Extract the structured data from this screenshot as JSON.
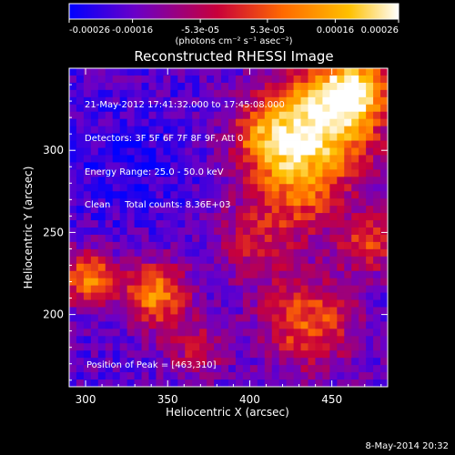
{
  "chart_data": {
    "type": "heatmap",
    "title": "Reconstructed RHESSI Image",
    "xlabel": "Heliocentric X (arcsec)",
    "ylabel": "Heliocentric Y (arcsec)",
    "xlim": [
      290,
      484
    ],
    "ylim": [
      156,
      350
    ],
    "x_ticks": [
      300,
      350,
      400,
      450
    ],
    "x_tick_labels": [
      "300",
      "350",
      "400",
      "450"
    ],
    "y_ticks": [
      200,
      250,
      300
    ],
    "y_tick_labels": [
      "200",
      "250",
      "300"
    ],
    "colorbar": {
      "min": -0.00026,
      "max": 0.00026,
      "tick_values": [
        -0.00026,
        -0.00016,
        -5.3e-05,
        5.3e-05,
        0.00016,
        0.00026
      ],
      "tick_labels": [
        "-0.00026",
        "-0.00016",
        "-5.3e-05",
        "5.3e-05",
        "0.00016",
        "0.00026"
      ],
      "unit_label": "(photons cm⁻² s⁻¹ asec⁻²)",
      "colors": [
        "#0000ff",
        "#6a00c8",
        "#c8003a",
        "#ff6a00",
        "#ffc000",
        "#ffffff"
      ]
    },
    "annotations": [
      "21-May-2012 17:41:32.000 to 17:45:08.000",
      "Detectors: 3F 5F 6F 7F 8F 9F, Att 0",
      "Energy Range: 25.0 - 50.0 keV",
      "Clean     Total counts: 8.36E+03"
    ],
    "peak_label": "Position of Peak = [463,310]",
    "peak_position": [
      463,
      310
    ],
    "grid": false,
    "legend": "none"
  },
  "footer": {
    "timestamp": "8-May-2014 20:32"
  }
}
